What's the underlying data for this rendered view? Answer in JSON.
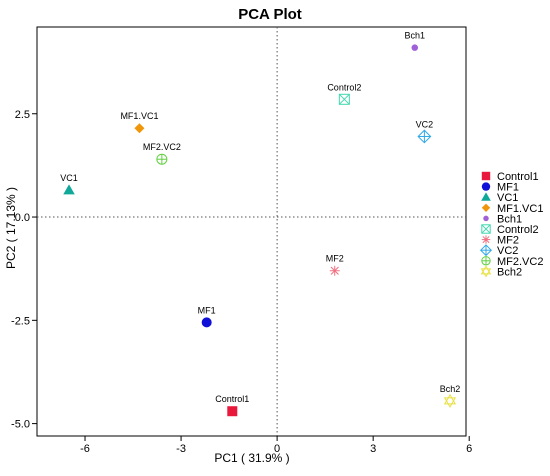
{
  "chart_data": {
    "type": "scatter",
    "title": "PCA Plot",
    "xlabel": "PC1 ( 31.9% )",
    "ylabel": "PC2 ( 17.13% )",
    "xlim": [
      -7.5,
      5.9
    ],
    "ylim": [
      -5.3,
      4.6
    ],
    "xticks": [
      -6,
      -3,
      0,
      3,
      6
    ],
    "yticks": [
      -5.0,
      -2.5,
      0.0,
      2.5
    ],
    "xtick_labels": [
      "-6",
      "-3",
      "0",
      "3",
      "6"
    ],
    "ytick_labels": [
      "-5.0",
      "-2.5",
      "0.0",
      "2.5"
    ],
    "grid": false,
    "reference_lines": {
      "x": 0,
      "y": 0,
      "style": "dotted"
    },
    "legend_position": "right",
    "points": [
      {
        "name": "Control1",
        "x": -1.4,
        "y": -4.7,
        "marker": "square",
        "color": "#e8193c"
      },
      {
        "name": "MF1",
        "x": -2.2,
        "y": -2.55,
        "marker": "circle",
        "color": "#1010d8"
      },
      {
        "name": "VC1",
        "x": -6.5,
        "y": 0.65,
        "marker": "triangle",
        "color": "#10a898"
      },
      {
        "name": "MF1.VC1",
        "x": -4.3,
        "y": 2.15,
        "marker": "diamond",
        "color": "#f0960a"
      },
      {
        "name": "Bch1",
        "x": 4.3,
        "y": 4.1,
        "marker": "dot",
        "color": "#a060d8"
      },
      {
        "name": "Control2",
        "x": 2.1,
        "y": 2.85,
        "marker": "square-x",
        "color": "#40d8b0"
      },
      {
        "name": "MF2",
        "x": 1.8,
        "y": -1.3,
        "marker": "asterisk",
        "color": "#f07080"
      },
      {
        "name": "VC2",
        "x": 4.6,
        "y": 1.95,
        "marker": "diamond-plus",
        "color": "#30a8e8"
      },
      {
        "name": "MF2.VC2",
        "x": -3.6,
        "y": 1.4,
        "marker": "circle-plus",
        "color": "#60d040"
      },
      {
        "name": "Bch2",
        "x": 5.4,
        "y": -4.45,
        "marker": "star-of-david",
        "color": "#e8e040"
      }
    ]
  }
}
